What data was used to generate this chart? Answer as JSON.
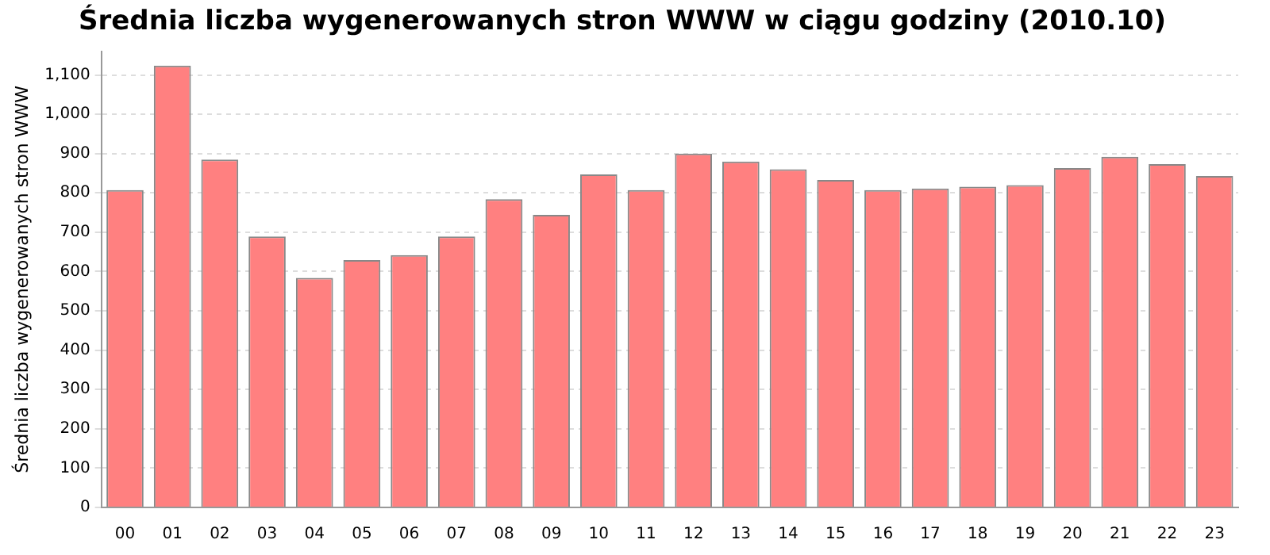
{
  "chart_data": {
    "type": "bar",
    "title": "Średnia liczba wygenerowanych stron WWW w ciągu godziny (2010.10)",
    "ylabel": "Średnia liczba wygenerowanych stron WWW",
    "categories": [
      "00",
      "01",
      "02",
      "03",
      "04",
      "05",
      "06",
      "07",
      "08",
      "09",
      "10",
      "11",
      "12",
      "13",
      "14",
      "15",
      "16",
      "17",
      "18",
      "19",
      "20",
      "21",
      "22",
      "23"
    ],
    "values": [
      807,
      1124,
      885,
      689,
      584,
      629,
      642,
      689,
      784,
      744,
      847,
      807,
      900,
      880,
      860,
      833,
      807,
      811,
      816,
      820,
      863,
      892,
      873,
      843
    ],
    "color": "#ff8080",
    "ylim": [
      0,
      1160
    ],
    "yticks": [
      0,
      100,
      200,
      300,
      400,
      500,
      600,
      700,
      800,
      900,
      {
        "value": 1000,
        "label": "1,000"
      },
      {
        "value": 1100,
        "label": "1,100"
      }
    ],
    "grid": "y",
    "legend": false
  }
}
